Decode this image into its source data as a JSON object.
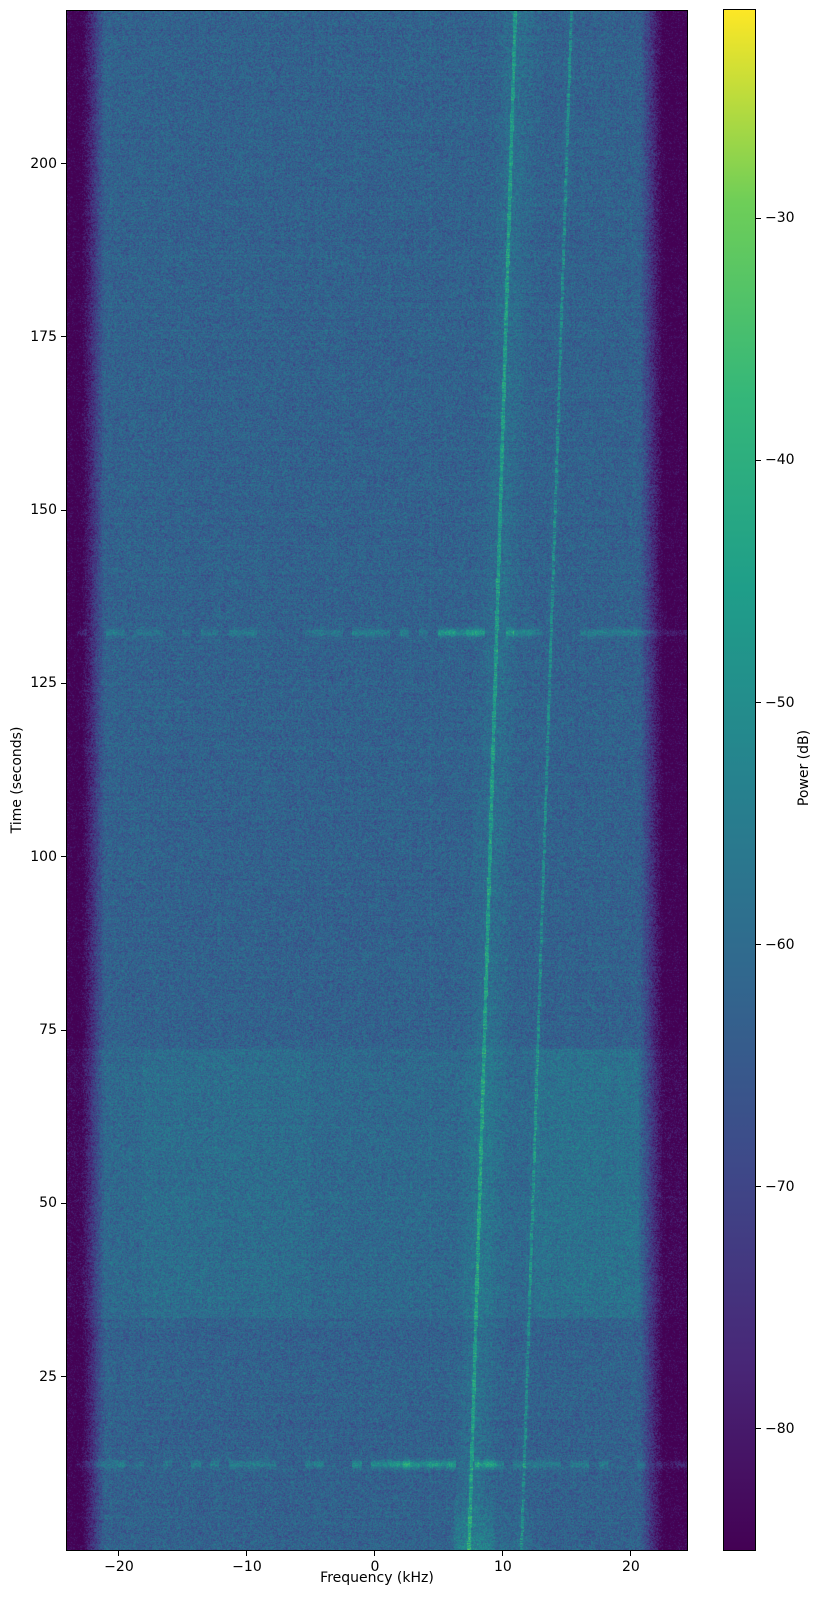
{
  "chart_data": {
    "type": "heatmap",
    "subtype": "spectrogram",
    "xlabel": "Frequency (kHz)",
    "ylabel": "Time (seconds)",
    "xlim": [
      -24.06,
      24.38
    ],
    "ylim": [
      0,
      222
    ],
    "xticks": [
      -20,
      -10,
      0,
      10,
      20
    ],
    "xtick_labels": [
      "−20",
      "−10",
      "0",
      "10",
      "20"
    ],
    "yticks": [
      25,
      50,
      75,
      100,
      125,
      150,
      175,
      200
    ],
    "ytick_labels": [
      "25",
      "50",
      "75",
      "100",
      "125",
      "150",
      "175",
      "200"
    ],
    "colorbar": {
      "label": "Power (dB)",
      "ticks": [
        -30,
        -40,
        -50,
        -60,
        -70,
        -80
      ],
      "tick_labels": [
        "−30",
        "−40",
        "−50",
        "−60",
        "−70",
        "−80"
      ],
      "vmin": -85.0,
      "vmax": -21.4,
      "colormap": "viridis",
      "viridis_stops": [
        "#440154",
        "#482878",
        "#3e4989",
        "#31688e",
        "#26828e",
        "#1f9e89",
        "#35b779",
        "#6ece58",
        "#fde725"
      ]
    },
    "features": {
      "noise": {
        "floor_db": -62.5,
        "sigma_db": 3.9
      },
      "passband": {
        "f_low": -21.1,
        "f_high": 20.7,
        "rolloff_db_per_khz": 13,
        "max_attenuation_db": 24
      },
      "chirps": [
        {
          "name": "chirp-1",
          "f_start_khz": 7.35,
          "f_end_khz": 10.97,
          "core_boost_db": 13,
          "core_halfwidth_khz": 0.14,
          "halo_boost_db": 3.4,
          "halo_sigma_khz": 0.85,
          "dashed": false
        },
        {
          "name": "chirp-2",
          "f_start_khz": 11.45,
          "f_end_khz": 15.35,
          "core_boost_db": 11,
          "core_halfwidth_khz": 0.11,
          "halo_boost_db": 1.1,
          "halo_sigma_khz": 0.28,
          "dashed": true
        }
      ],
      "bursts": [
        {
          "time_s": 132.3,
          "boost_db": 9,
          "bright_range_khz": [
            4.5,
            12.5
          ],
          "hot_spots_khz": [
            10.55,
            8.0
          ]
        },
        {
          "time_s": 12.35,
          "boost_db": 9,
          "bright_range_khz": [
            -2.0,
            9.5
          ],
          "hot_spots_khz": [
            2.45,
            7.9
          ]
        }
      ],
      "block": {
        "t_start_s": 33.5,
        "t_end_s": 72.3,
        "boost_db": 2.0,
        "extra_regions": [
          {
            "f_range_khz": [
              12.4,
              20.6
            ],
            "boost_db": 2.4
          },
          {
            "f_range_khz": [
              -18.2,
              -5.0
            ],
            "boost_db": 1.2
          }
        ]
      },
      "startup_patch": {
        "t_max_s": 8.5,
        "f_range_khz": [
          6.2,
          9.4
        ],
        "boost_db": 6,
        "secondary_f_range_khz": [
          9.4,
          12.2
        ],
        "secondary_boost_db": 2
      },
      "faint_vlines": [
        {
          "f_khz": 4.35,
          "boost_db": 1.7
        },
        {
          "f_khz": -12.15,
          "boost_db": 1.0
        }
      ]
    }
  }
}
